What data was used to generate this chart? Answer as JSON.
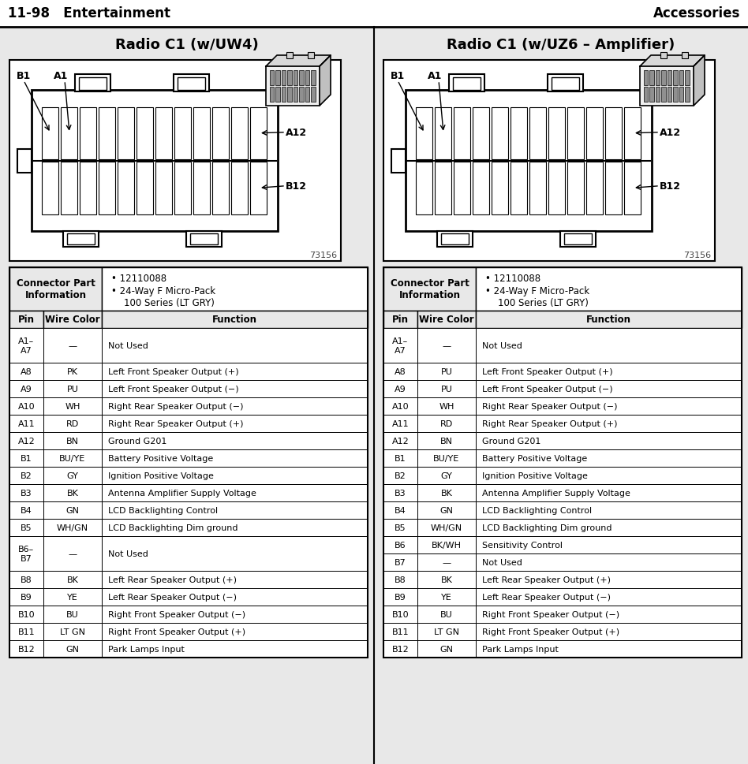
{
  "page_header_left": "11-98   Entertainment",
  "page_header_right": "Accessories",
  "bg_color": "#e8e8e8",
  "left_title": "Radio C1 (w/UW4)",
  "right_title": "Radio C1 (w/UZ6 – Amplifier)",
  "connector_info_line1": "• 12110088",
  "connector_info_line2": "• 24-Way F Micro-Pack",
  "connector_info_line3": "100 Series (LT GRY)",
  "part_num": "73156",
  "left_table": [
    [
      "A1–\nA7",
      "—",
      "Not Used"
    ],
    [
      "A8",
      "PK",
      "Left Front Speaker Output (+)"
    ],
    [
      "A9",
      "PU",
      "Left Front Speaker Output (−)"
    ],
    [
      "A10",
      "WH",
      "Right Rear Speaker Output (−)"
    ],
    [
      "A11",
      "RD",
      "Right Rear Speaker Output (+)"
    ],
    [
      "A12",
      "BN",
      "Ground G201"
    ],
    [
      "B1",
      "BU/YE",
      "Battery Positive Voltage"
    ],
    [
      "B2",
      "GY",
      "Ignition Positive Voltage"
    ],
    [
      "B3",
      "BK",
      "Antenna Amplifier Supply Voltage"
    ],
    [
      "B4",
      "GN",
      "LCD Backlighting Control"
    ],
    [
      "B5",
      "WH/GN",
      "LCD Backlighting Dim ground"
    ],
    [
      "B6–\nB7",
      "—",
      "Not Used"
    ],
    [
      "B8",
      "BK",
      "Left Rear Speaker Output (+)"
    ],
    [
      "B9",
      "YE",
      "Left Rear Speaker Output (−)"
    ],
    [
      "B10",
      "BU",
      "Right Front Speaker Output (−)"
    ],
    [
      "B11",
      "LT GN",
      "Right Front Speaker Output (+)"
    ],
    [
      "B12",
      "GN",
      "Park Lamps Input"
    ]
  ],
  "right_table": [
    [
      "A1–\nA7",
      "—",
      "Not Used"
    ],
    [
      "A8",
      "PU",
      "Left Front Speaker Output (+)"
    ],
    [
      "A9",
      "PU",
      "Left Front Speaker Output (−)"
    ],
    [
      "A10",
      "WH",
      "Right Rear Speaker Output (−)"
    ],
    [
      "A11",
      "RD",
      "Right Rear Speaker Output (+)"
    ],
    [
      "A12",
      "BN",
      "Ground G201"
    ],
    [
      "B1",
      "BU/YE",
      "Battery Positive Voltage"
    ],
    [
      "B2",
      "GY",
      "Ignition Positive Voltage"
    ],
    [
      "B3",
      "BK",
      "Antenna Amplifier Supply Voltage"
    ],
    [
      "B4",
      "GN",
      "LCD Backlighting Control"
    ],
    [
      "B5",
      "WH/GN",
      "LCD Backlighting Dim ground"
    ],
    [
      "B6",
      "BK/WH",
      "Sensitivity Control"
    ],
    [
      "B7",
      "—",
      "Not Used"
    ],
    [
      "B8",
      "BK",
      "Left Rear Speaker Output (+)"
    ],
    [
      "B9",
      "YE",
      "Left Rear Speaker Output (−)"
    ],
    [
      "B10",
      "BU",
      "Right Front Speaker Output (−)"
    ],
    [
      "B11",
      "LT GN",
      "Right Front Speaker Output (+)"
    ],
    [
      "B12",
      "GN",
      "Park Lamps Input"
    ]
  ]
}
